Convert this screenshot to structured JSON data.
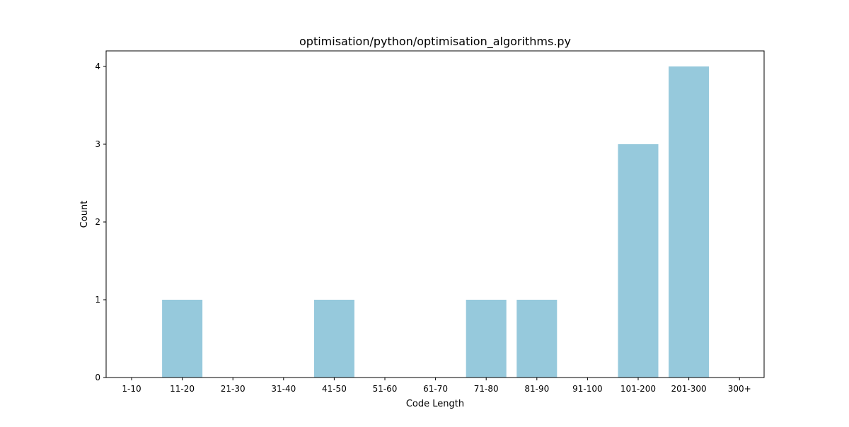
{
  "chart_data": {
    "type": "bar",
    "title": "optimisation/python/optimisation_algorithms.py",
    "xlabel": "Code Length",
    "ylabel": "Count",
    "categories": [
      "1-10",
      "11-20",
      "21-30",
      "31-40",
      "41-50",
      "51-60",
      "61-70",
      "71-80",
      "81-90",
      "91-100",
      "101-200",
      "201-300",
      "300+"
    ],
    "values": [
      0,
      1,
      0,
      0,
      1,
      0,
      0,
      1,
      1,
      0,
      3,
      4,
      0
    ],
    "ylim": [
      0,
      4.2
    ],
    "yticks": [
      0,
      1,
      2,
      3,
      4
    ],
    "grid": false,
    "bar_color": "#96c9dc"
  }
}
